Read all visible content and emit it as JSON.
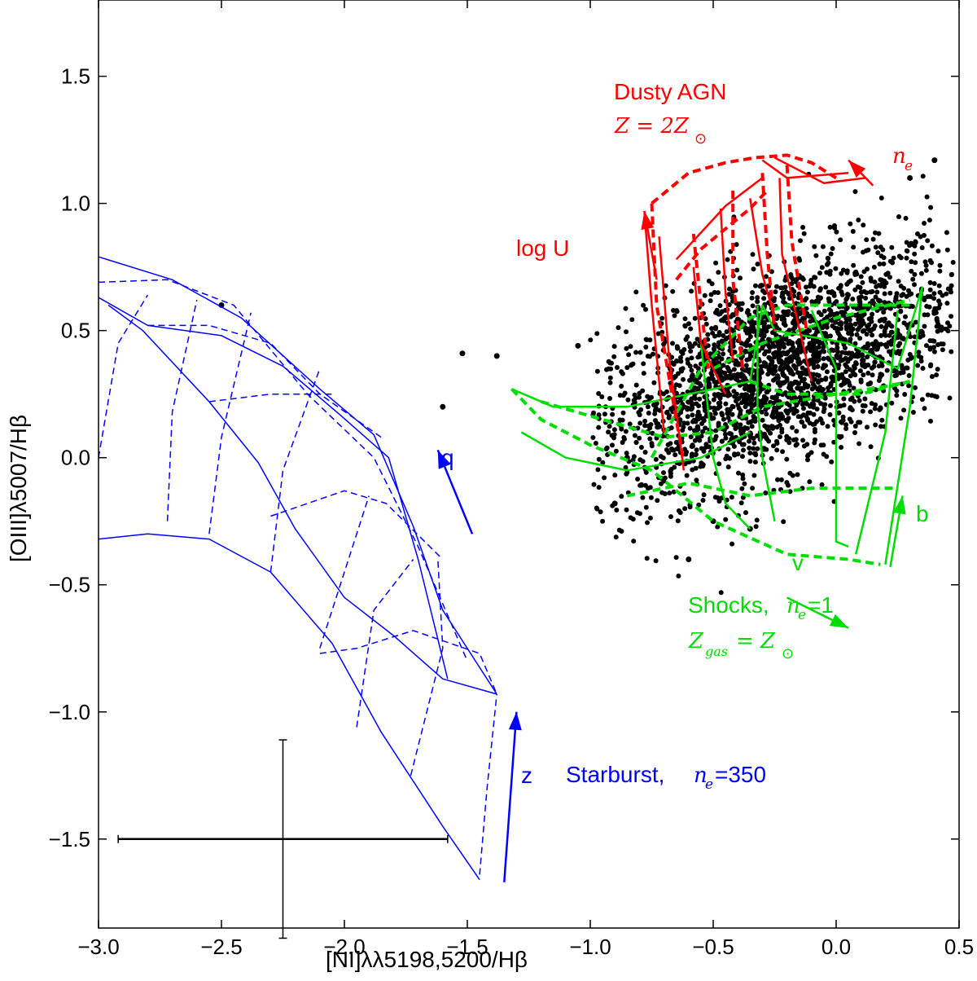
{
  "chart_data": {
    "type": "scatter",
    "title": "",
    "xlabel": "[NI]λλ5198,5200/Hβ",
    "ylabel": "[OIII]λ5007/Hβ",
    "xlim": [
      -3.0,
      0.5
    ],
    "ylim": [
      -1.85,
      1.8
    ],
    "grid": false,
    "x_ticks": [
      -3.0,
      -2.5,
      -2.0,
      -1.5,
      -1.0,
      -0.5,
      0.0,
      0.5
    ],
    "x_tick_labels": [
      "−3.0",
      "−2.5",
      "−2.0",
      "−1.5",
      "−1.0",
      "−0.5",
      "0.0",
      "0.5"
    ],
    "y_ticks": [
      -1.5,
      -1.0,
      -0.5,
      0.0,
      0.5,
      1.0,
      1.5
    ],
    "y_tick_labels": [
      "−1.5",
      "−1.0",
      "−0.5",
      "0.0",
      "0.5",
      "1.0",
      "1.5"
    ],
    "colors": {
      "starburst": "#0000ff",
      "agn": "#ff0000",
      "shocks": "#00dd00",
      "data": "#000000"
    },
    "annotations": {
      "agn_title": "Dusty AGN",
      "agn_z": "Z = 2Z",
      "agn_ne": "n",
      "agn_logu": "log U",
      "starburst_label": "Starburst,",
      "starburst_ne_value": "=350",
      "shocks_label": "Shocks,",
      "shocks_ne_value": "=1",
      "shocks_z": "Z",
      "shocks_z_sub": "gas",
      "shocks_z_rhs": "= Z",
      "sub_e": "e",
      "arrow_q": "q",
      "arrow_z": "z",
      "arrow_b": "b",
      "arrow_v": "v"
    },
    "error_bar": {
      "x": -2.25,
      "y": -1.5,
      "xerr_low": -2.92,
      "xerr_high": -1.58,
      "yerr_low": -1.89,
      "yerr_high": -1.11
    },
    "starburst_solid": [
      [
        [
          -3.0,
          0.79
        ],
        [
          -2.7,
          0.7
        ],
        [
          -2.42,
          0.55
        ],
        [
          -2.1,
          0.27
        ],
        [
          -1.88,
          0.09
        ],
        [
          -1.72,
          -0.27
        ],
        [
          -1.6,
          -0.6
        ],
        [
          -1.38,
          -0.93
        ]
      ],
      [
        [
          -3.0,
          0.63
        ],
        [
          -2.8,
          0.52
        ],
        [
          -2.5,
          0.48
        ],
        [
          -2.25,
          0.36
        ],
        [
          -2.02,
          0.17
        ],
        [
          -1.82,
          0.0
        ],
        [
          -1.7,
          -0.4
        ],
        [
          -1.58,
          -0.87
        ]
      ],
      [
        [
          -3.0,
          -0.32
        ],
        [
          -2.8,
          -0.3
        ],
        [
          -2.55,
          -0.32
        ],
        [
          -2.3,
          -0.45
        ],
        [
          -2.05,
          -0.73
        ],
        [
          -1.85,
          -1.08
        ],
        [
          -1.6,
          -1.45
        ],
        [
          -1.45,
          -1.66
        ]
      ],
      [
        [
          -2.96,
          0.6
        ],
        [
          -2.82,
          0.5
        ],
        [
          -2.55,
          0.22
        ],
        [
          -2.35,
          -0.02
        ],
        [
          -2.2,
          -0.28
        ],
        [
          -2.0,
          -0.55
        ],
        [
          -1.8,
          -0.7
        ],
        [
          -1.6,
          -0.87
        ],
        [
          -1.38,
          -0.93
        ]
      ]
    ],
    "starburst_dashed": [
      [
        [
          -3.0,
          0.69
        ],
        [
          -2.72,
          0.7
        ],
        [
          -2.45,
          0.6
        ],
        [
          -2.15,
          0.25
        ],
        [
          -1.88,
          0.0
        ],
        [
          -1.7,
          -0.35
        ],
        [
          -1.5,
          -0.8
        ]
      ],
      [
        [
          -2.8,
          0.52
        ],
        [
          -2.55,
          0.52
        ],
        [
          -2.3,
          0.45
        ],
        [
          -2.1,
          0.25
        ],
        [
          -1.85,
          0.08
        ]
      ],
      [
        [
          -2.55,
          0.22
        ],
        [
          -2.3,
          0.25
        ],
        [
          -2.05,
          0.25
        ]
      ],
      [
        [
          -2.3,
          -0.23
        ],
        [
          -2.0,
          -0.13
        ],
        [
          -1.83,
          -0.18
        ],
        [
          -1.6,
          -0.4
        ]
      ],
      [
        [
          -2.1,
          -0.77
        ],
        [
          -1.95,
          -0.75
        ],
        [
          -1.72,
          -0.68
        ],
        [
          -1.45,
          -0.77
        ],
        [
          -1.38,
          -0.93
        ]
      ],
      [
        [
          -3.0,
          0.0
        ],
        [
          -2.92,
          0.45
        ],
        [
          -2.8,
          0.64
        ]
      ],
      [
        [
          -2.72,
          -0.25
        ],
        [
          -2.7,
          0.18
        ],
        [
          -2.6,
          0.62
        ]
      ],
      [
        [
          -2.55,
          -0.3
        ],
        [
          -2.5,
          0.08
        ],
        [
          -2.38,
          0.57
        ]
      ],
      [
        [
          -2.3,
          -0.45
        ],
        [
          -2.25,
          -0.05
        ],
        [
          -2.1,
          0.35
        ]
      ],
      [
        [
          -2.1,
          -0.75
        ],
        [
          -2.0,
          -0.45
        ],
        [
          -1.9,
          -0.15
        ]
      ],
      [
        [
          -1.95,
          -1.06
        ],
        [
          -1.88,
          -0.6
        ],
        [
          -1.72,
          -0.4
        ]
      ],
      [
        [
          -1.73,
          -1.25
        ],
        [
          -1.6,
          -0.75
        ],
        [
          -1.62,
          -0.4
        ]
      ],
      [
        [
          -1.45,
          -1.64
        ],
        [
          -1.42,
          -1.3
        ],
        [
          -1.38,
          -0.93
        ]
      ]
    ],
    "agn_solid": [
      [
        [
          -0.78,
          0.97
        ],
        [
          -0.75,
          0.6
        ],
        [
          -0.7,
          0.1
        ]
      ],
      [
        [
          -0.72,
          0.87
        ],
        [
          -0.68,
          0.4
        ],
        [
          -0.62,
          -0.05
        ]
      ],
      [
        [
          -0.58,
          0.75
        ],
        [
          -0.55,
          0.45
        ],
        [
          -0.45,
          0.25
        ]
      ],
      [
        [
          -0.47,
          0.98
        ],
        [
          -0.45,
          0.65
        ],
        [
          -0.42,
          0.38
        ]
      ],
      [
        [
          -0.35,
          1.02
        ],
        [
          -0.3,
          0.72
        ],
        [
          -0.25,
          0.55
        ]
      ],
      [
        [
          -0.23,
          1.1
        ],
        [
          -0.22,
          0.8
        ],
        [
          -0.1,
          0.3
        ]
      ],
      [
        [
          -0.3,
          1.17
        ],
        [
          -0.2,
          1.1
        ],
        [
          0.05,
          1.12
        ]
      ],
      [
        [
          -0.25,
          1.18
        ],
        [
          -0.05,
          1.08
        ],
        [
          0.12,
          1.1
        ]
      ],
      [
        [
          -0.65,
          0.78
        ],
        [
          -0.45,
          0.99
        ],
        [
          -0.3,
          1.1
        ]
      ]
    ],
    "agn_dashed": [
      [
        [
          -0.75,
          1.0
        ],
        [
          -0.6,
          1.12
        ],
        [
          -0.45,
          1.16
        ],
        [
          -0.33,
          1.18
        ],
        [
          -0.2,
          1.19
        ],
        [
          -0.1,
          1.16
        ],
        [
          0.0,
          1.1
        ]
      ],
      [
        [
          -0.65,
          0.7
        ],
        [
          -0.55,
          0.82
        ],
        [
          -0.45,
          0.9
        ],
        [
          -0.35,
          0.98
        ],
        [
          -0.28,
          1.05
        ]
      ],
      [
        [
          -0.75,
          1.0
        ],
        [
          -0.73,
          0.6
        ],
        [
          -0.62,
          -0.02
        ]
      ],
      [
        [
          -0.58,
          0.88
        ],
        [
          -0.55,
          0.6
        ],
        [
          -0.52,
          0.35
        ]
      ],
      [
        [
          -0.42,
          1.05
        ],
        [
          -0.42,
          0.7
        ],
        [
          -0.38,
          0.35
        ]
      ],
      [
        [
          -0.3,
          1.12
        ],
        [
          -0.28,
          0.8
        ],
        [
          -0.25,
          0.5
        ]
      ],
      [
        [
          -0.2,
          1.15
        ],
        [
          -0.18,
          0.85
        ],
        [
          -0.12,
          0.5
        ]
      ]
    ],
    "shocks_solid": [
      [
        [
          -0.3,
          0.6
        ],
        [
          -0.25,
          0.5
        ],
        [
          0.05,
          0.45
        ],
        [
          0.25,
          0.35
        ],
        [
          0.35,
          0.67
        ],
        [
          0.3,
          0.2
        ],
        [
          0.2,
          -0.42
        ]
      ],
      [
        [
          -1.32,
          0.27
        ],
        [
          -1.15,
          0.2
        ],
        [
          -0.85,
          0.2
        ],
        [
          -0.6,
          0.25
        ],
        [
          -0.35,
          0.3
        ],
        [
          -0.3,
          0.6
        ]
      ],
      [
        [
          -1.28,
          0.1
        ],
        [
          -1.1,
          0.0
        ],
        [
          -0.85,
          -0.05
        ],
        [
          -0.55,
          0.0
        ],
        [
          -0.35,
          0.1
        ]
      ],
      [
        [
          -0.32,
          0.6
        ],
        [
          -0.32,
          0.2
        ],
        [
          -0.3,
          0.0
        ],
        [
          -0.25,
          -0.25
        ]
      ],
      [
        [
          -0.1,
          0.58
        ],
        [
          0.0,
          0.35
        ],
        [
          0.0,
          -0.33
        ],
        [
          0.05,
          -0.35
        ]
      ],
      [
        [
          0.25,
          0.58
        ],
        [
          0.2,
          0.1
        ],
        [
          0.1,
          -0.3
        ],
        [
          0.08,
          -0.38
        ]
      ],
      [
        [
          -0.55,
          0.45
        ],
        [
          -0.5,
          0.0
        ],
        [
          -0.45,
          -0.18
        ],
        [
          -0.35,
          -0.28
        ]
      ]
    ],
    "shocks_dashed": [
      [
        [
          -1.32,
          0.27
        ],
        [
          -1.2,
          0.15
        ],
        [
          -1.0,
          0.05
        ],
        [
          -0.75,
          -0.05
        ],
        [
          -0.5,
          -0.25
        ],
        [
          -0.2,
          -0.38
        ],
        [
          0.05,
          -0.4
        ],
        [
          0.18,
          -0.42
        ]
      ],
      [
        [
          -1.2,
          0.22
        ],
        [
          -0.95,
          0.15
        ],
        [
          -0.7,
          0.08
        ],
        [
          -0.5,
          0.1
        ],
        [
          -0.3,
          0.2
        ],
        [
          0.0,
          0.25
        ],
        [
          0.2,
          0.28
        ],
        [
          0.3,
          0.3
        ]
      ],
      [
        [
          -0.5,
          0.35
        ],
        [
          -0.3,
          0.45
        ],
        [
          0.0,
          0.55
        ],
        [
          0.3,
          0.62
        ]
      ],
      [
        [
          -0.35,
          0.3
        ],
        [
          -0.2,
          0.25
        ],
        [
          0.1,
          0.25
        ],
        [
          0.3,
          0.3
        ]
      ],
      [
        [
          -0.85,
          -0.15
        ],
        [
          -0.6,
          -0.1
        ],
        [
          -0.35,
          -0.15
        ],
        [
          -0.1,
          -0.12
        ],
        [
          0.1,
          -0.12
        ],
        [
          0.25,
          -0.12
        ]
      ],
      [
        [
          -0.75,
          0.0
        ],
        [
          -0.55,
          0.35
        ],
        [
          -0.35,
          0.55
        ],
        [
          -0.2,
          0.6
        ],
        [
          0.05,
          0.6
        ],
        [
          0.3,
          0.6
        ]
      ]
    ],
    "arrows": [
      {
        "name": "q",
        "color": "starburst",
        "from": [
          -1.48,
          -0.3
        ],
        "to": [
          -1.62,
          0.03
        ]
      },
      {
        "name": "z",
        "color": "starburst",
        "from": [
          -1.35,
          -1.67
        ],
        "to": [
          -1.3,
          -1.0
        ]
      },
      {
        "name": "logU",
        "color": "agn",
        "from": [
          -0.73,
          0.7
        ],
        "to": [
          -0.78,
          0.97
        ]
      },
      {
        "name": "ne",
        "color": "agn",
        "from": [
          0.15,
          1.07
        ],
        "to": [
          0.05,
          1.17
        ]
      },
      {
        "name": "b",
        "color": "shocks",
        "from": [
          0.22,
          -0.43
        ],
        "to": [
          0.27,
          -0.15
        ]
      },
      {
        "name": "v",
        "color": "shocks",
        "from": [
          -0.2,
          -0.55
        ],
        "to": [
          0.05,
          -0.67
        ]
      }
    ],
    "scatter_outliers": [
      [
        -1.52,
        0.41
      ],
      [
        -1.38,
        0.4
      ],
      [
        -1.6,
        0.2
      ],
      [
        -1.05,
        0.44
      ],
      [
        -0.9,
        -0.18
      ],
      [
        -0.6,
        -0.4
      ],
      [
        -0.5,
        -0.25
      ],
      [
        -0.35,
        -0.28
      ],
      [
        -0.85,
        0.0
      ],
      [
        0.4,
        1.17
      ],
      [
        0.3,
        1.1
      ],
      [
        -2.5,
        0.6
      ]
    ],
    "scatter_cloud": {
      "center": [
        -0.25,
        0.35
      ],
      "spread": [
        0.38,
        0.2
      ],
      "count": 2600
    }
  }
}
